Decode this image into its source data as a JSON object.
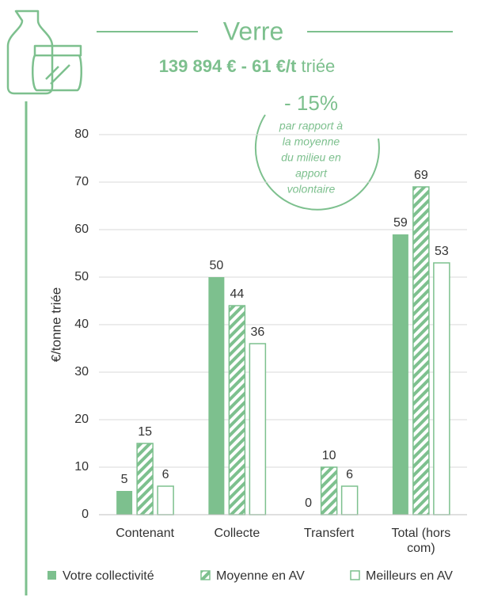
{
  "chart_data": {
    "type": "bar",
    "title": "Verre",
    "subtitle_bold": "139 894 € - 61 €/t",
    "subtitle_rest": "triée",
    "annotation": {
      "headline": "- 15%",
      "lines": [
        "par rapport à",
        "la moyenne",
        "du milieu en",
        "apport",
        "volontaire"
      ]
    },
    "y_label": "€/tonne triée",
    "categories": [
      "Contenant",
      "Collecte",
      "Transfert",
      "Total (hors com)"
    ],
    "series": [
      {
        "name": "Votre collectivité",
        "color": "#7dc08e",
        "style": "solid",
        "values": [
          5,
          50,
          0,
          59
        ]
      },
      {
        "name": "Moyenne en AV",
        "color": "#7dc08e",
        "style": "hatched",
        "values": [
          15,
          44,
          10,
          69
        ]
      },
      {
        "name": "Meilleurs en AV",
        "color": "#7dc08e",
        "style": "outline",
        "values": [
          6,
          36,
          6,
          53
        ]
      }
    ],
    "ylim": [
      0,
      80
    ],
    "yticks": [
      0,
      10,
      20,
      30,
      40,
      50,
      60,
      70,
      80
    ],
    "grid": true
  }
}
